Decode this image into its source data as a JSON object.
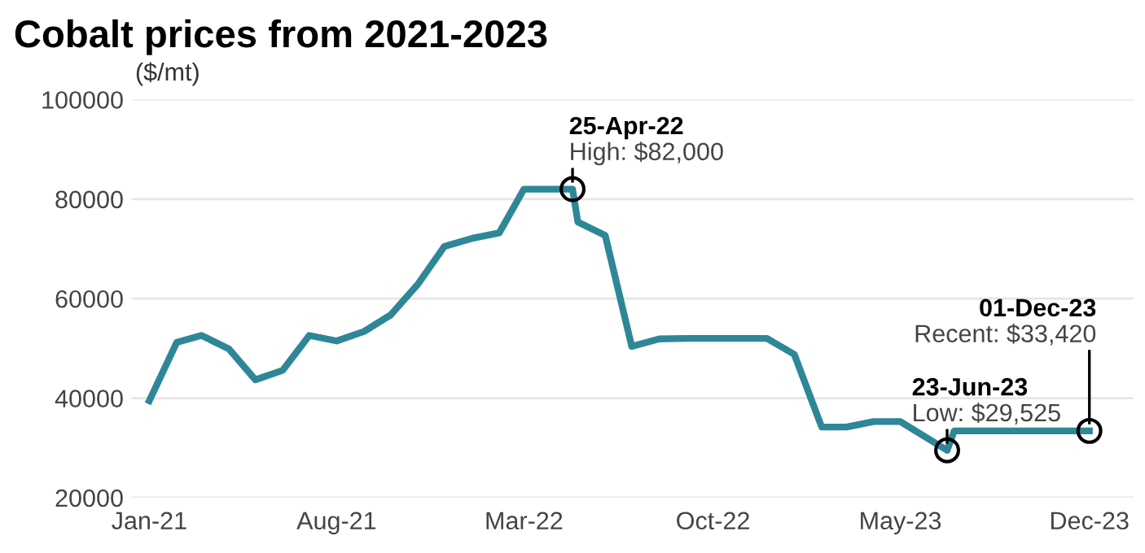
{
  "chart_data": {
    "type": "line",
    "title": "Cobalt prices from 2021-2023",
    "ylabel": "($/mt)",
    "x": [
      "2021-01",
      "2021-02",
      "2021-03",
      "2021-04",
      "2021-05",
      "2021-06",
      "2021-07",
      "2021-08",
      "2021-09",
      "2021-10",
      "2021-11",
      "2021-12",
      "2022-01",
      "2022-02",
      "2022-03",
      "2022-04-25",
      "2022-05",
      "2022-06",
      "2022-07",
      "2022-08",
      "2022-09",
      "2022-10",
      "2022-11",
      "2022-12",
      "2023-01",
      "2023-02",
      "2023-03",
      "2023-04",
      "2023-05",
      "2023-06-23",
      "2023-07",
      "2023-08",
      "2023-09",
      "2023-10",
      "2023-11",
      "2023-12-01"
    ],
    "series": [
      {
        "color": "#2e8797",
        "values": [
          39500,
          51200,
          52600,
          49900,
          43700,
          45600,
          52600,
          51500,
          53400,
          56700,
          62900,
          70500,
          72100,
          73200,
          82000,
          82000,
          75400,
          72700,
          50400,
          51900,
          52000,
          52000,
          52000,
          52000,
          48800,
          34200,
          34200,
          35300,
          35300,
          29525,
          33420,
          33420,
          33420,
          33420,
          33420,
          33420
        ]
      }
    ],
    "xlim": [
      "2020-12-12",
      "2024-01-20"
    ],
    "xticks": [
      {
        "value": "2021-01-01",
        "label": "Jan-21"
      },
      {
        "value": "2021-08-01",
        "label": "Aug-21"
      },
      {
        "value": "2022-03-01",
        "label": "Mar-22"
      },
      {
        "value": "2022-10-01",
        "label": "Oct-22"
      },
      {
        "value": "2023-05-01",
        "label": "May-23"
      },
      {
        "value": "2023-12-01",
        "label": "Dec-23"
      }
    ],
    "ylim": [
      20000,
      100000
    ],
    "yticks": [
      20000,
      40000,
      60000,
      80000,
      100000
    ],
    "grid": "y",
    "marker": "none",
    "line_style": "solid",
    "annotations": [
      {
        "text": "25-Apr-22\nHigh: $82,000",
        "x": "2022-04-25",
        "y": 82000
      },
      {
        "text": "23-Jun-23\nLow: $29,525",
        "x": "2023-06-23",
        "y": 29525
      },
      {
        "text": "01-Dec-23\nRecent: $33,420",
        "x": "2023-12-01",
        "y": 33420
      }
    ]
  }
}
